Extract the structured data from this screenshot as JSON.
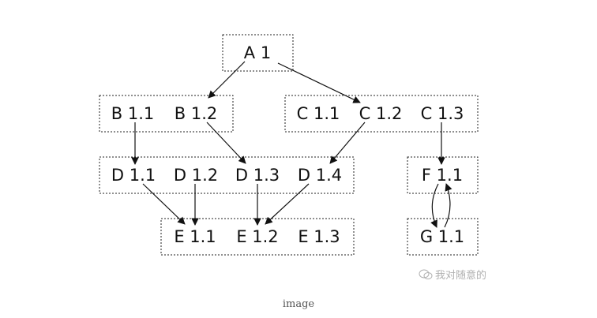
{
  "diagram": {
    "nodes": {
      "A11": "A 1",
      "B11": "B 1.1",
      "B12": "B 1.2",
      "C11": "C 1.1",
      "C12": "C 1.2",
      "C13": "C 1.3",
      "D11": "D 1.1",
      "D12": "D 1.2",
      "D13": "D 1.3",
      "D14": "D 1.4",
      "E11": "E 1.1",
      "E12": "E 1.2",
      "E13": "E 1.3",
      "F11": "F 1.1",
      "G11": "G 1.1"
    },
    "edges": [
      {
        "from": "A 1",
        "to": "B 1.2"
      },
      {
        "from": "A 1",
        "to": "C 1.2"
      },
      {
        "from": "B 1.1",
        "to": "D 1.1"
      },
      {
        "from": "B 1.2",
        "to": "D 1.3"
      },
      {
        "from": "C 1.2",
        "to": "D 1.4"
      },
      {
        "from": "C 1.3",
        "to": "F 1.1"
      },
      {
        "from": "D 1.1",
        "to": "E 1.1"
      },
      {
        "from": "D 1.2",
        "to": "E 1.1"
      },
      {
        "from": "D 1.3",
        "to": "E 1.2"
      },
      {
        "from": "D 1.4",
        "to": "E 1.2"
      },
      {
        "from": "F 1.1",
        "to": "G 1.1"
      },
      {
        "from": "G 1.1",
        "to": "F 1.1"
      }
    ]
  },
  "watermark": "我对随意的",
  "caption": "image"
}
